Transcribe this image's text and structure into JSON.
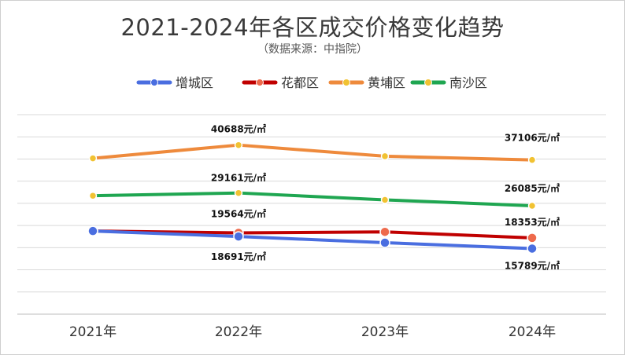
{
  "title": "2021-2024年各区成交价格变化趋势",
  "subtitle": "（数据来源：中指院）",
  "chart_data": {
    "type": "line",
    "title": "2021-2024年各区成交价格变化趋势",
    "subtitle": "（数据来源：中指院）",
    "categories": [
      "2021年",
      "2022年",
      "2023年",
      "2024年"
    ],
    "ylim": [
      0,
      48000
    ],
    "grid": true,
    "legend_position": "top-center",
    "series": [
      {
        "name": "增城区",
        "color": "#4a6ee0",
        "values": [
          20000,
          18691,
          17200,
          15789
        ],
        "labels": [
          "",
          "18691元/㎡",
          "",
          "15789元/㎡"
        ]
      },
      {
        "name": "花都区",
        "color": "#c00000",
        "values": [
          20000,
          19564,
          19800,
          18353
        ],
        "labels": [
          "",
          "19564元/㎡",
          "",
          "18353元/㎡"
        ]
      },
      {
        "name": "黄埔区",
        "color": "#ee8a3c",
        "values": [
          37500,
          40688,
          38000,
          37106
        ],
        "labels": [
          "",
          "40688元/㎡",
          "",
          "37106元/㎡"
        ]
      },
      {
        "name": "南沙区",
        "color": "#1fa651",
        "values": [
          28500,
          29161,
          27500,
          26085
        ],
        "labels": [
          "",
          "29161元/㎡",
          "",
          "26085元/㎡"
        ]
      }
    ],
    "marker_color": "#f1c232"
  }
}
